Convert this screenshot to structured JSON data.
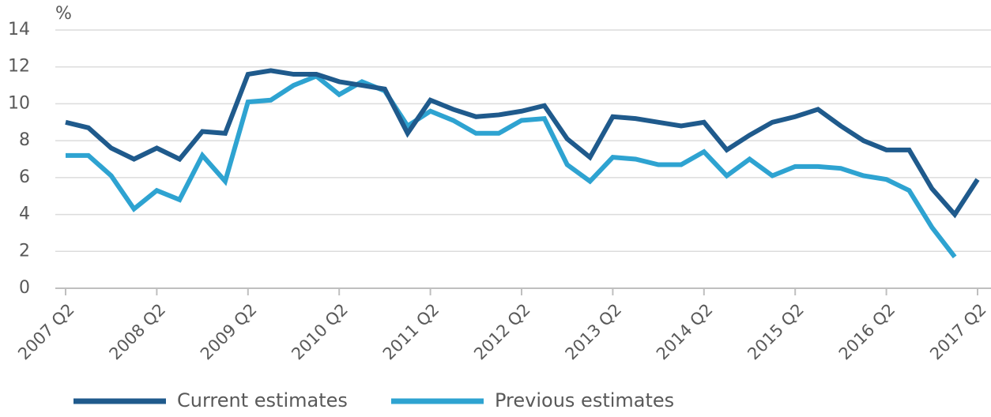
{
  "chart_data": {
    "type": "line",
    "ylabel": "%",
    "categories": [
      "2007 Q2",
      null,
      null,
      null,
      "2008 Q2",
      null,
      null,
      null,
      "2009 Q2",
      null,
      null,
      null,
      "2010 Q2",
      null,
      null,
      null,
      "2011 Q2",
      null,
      null,
      null,
      "2012 Q2",
      null,
      null,
      null,
      "2013 Q2",
      null,
      null,
      null,
      "2014 Q2",
      null,
      null,
      null,
      "2015 Q2",
      null,
      null,
      null,
      "2016 Q2",
      null,
      null,
      null,
      "2017 Q2"
    ],
    "series": [
      {
        "name": "Current estimates",
        "color": "#1f5a8c",
        "values": [
          9.0,
          8.7,
          7.6,
          7.0,
          7.6,
          7.0,
          8.5,
          8.4,
          11.6,
          11.8,
          11.6,
          11.6,
          11.2,
          11.0,
          10.8,
          8.4,
          10.2,
          9.7,
          9.3,
          9.4,
          9.6,
          9.9,
          8.1,
          7.1,
          9.3,
          9.2,
          9.0,
          8.8,
          9.0,
          7.5,
          8.3,
          9.0,
          9.3,
          9.7,
          8.8,
          8.0,
          7.5,
          7.5,
          5.4,
          4.0,
          5.9
        ]
      },
      {
        "name": "Previous estimates",
        "color": "#2ea3d1",
        "values": [
          7.2,
          7.2,
          6.1,
          4.3,
          5.3,
          4.8,
          7.2,
          5.8,
          10.1,
          10.2,
          11.0,
          11.5,
          10.5,
          11.2,
          10.7,
          8.8,
          9.6,
          9.1,
          8.4,
          8.4,
          9.1,
          9.2,
          6.7,
          5.8,
          7.1,
          7.0,
          6.7,
          6.7,
          7.4,
          6.1,
          7.0,
          6.1,
          6.6,
          6.6,
          6.5,
          6.1,
          5.9,
          5.3,
          3.3,
          1.7,
          null
        ]
      }
    ],
    "ylim": [
      0,
      14
    ],
    "yticks": [
      0,
      2,
      4,
      6,
      8,
      10,
      12,
      14
    ],
    "grid": true,
    "legend": "bottom"
  }
}
